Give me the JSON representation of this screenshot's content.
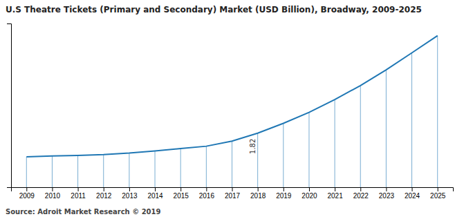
{
  "chart_data": {
    "type": "line",
    "title": "U.S Theatre Tickets (Primary and Secondary) Market (USD Billion), Broadway, 2009-2025",
    "source": "Source: Adroit Market Research © 2019",
    "x": [
      2009,
      2010,
      2011,
      2012,
      2013,
      2014,
      2015,
      2016,
      2017,
      2018,
      2019,
      2020,
      2021,
      2022,
      2023,
      2024,
      2025
    ],
    "values": [
      1.02,
      1.05,
      1.07,
      1.1,
      1.15,
      1.22,
      1.3,
      1.38,
      1.55,
      1.82,
      2.15,
      2.52,
      2.95,
      3.42,
      3.95,
      4.52,
      5.1
    ],
    "xlim": [
      2008.4,
      2025.6
    ],
    "xticks": [
      2009,
      2010,
      2011,
      2012,
      2013,
      2014,
      2015,
      2016,
      2017,
      2018,
      2019,
      2020,
      2021,
      2022,
      2023,
      2024,
      2025
    ],
    "ylim": [
      0,
      5.508
    ],
    "tick_labels": "x",
    "annotations": [
      {
        "text": "1.82",
        "x": 2018,
        "y": 1.82
      }
    ]
  }
}
